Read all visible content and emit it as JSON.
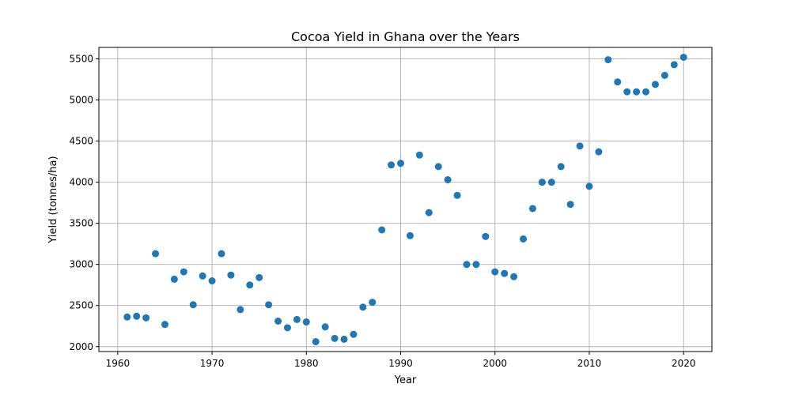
{
  "chart_data": {
    "type": "scatter",
    "title": "Cocoa Yield in Ghana over the Years",
    "xlabel": "Year",
    "ylabel": "Yield (tonnes/ha)",
    "xlim": [
      1958,
      2023
    ],
    "ylim": [
      1940,
      5640
    ],
    "x_ticks": [
      1960,
      1970,
      1980,
      1990,
      2000,
      2010,
      2020
    ],
    "y_ticks": [
      2000,
      2500,
      3000,
      3500,
      4000,
      4500,
      5000,
      5500
    ],
    "grid": true,
    "marker_color": "#1f77b4",
    "x": [
      1961,
      1962,
      1963,
      1964,
      1965,
      1966,
      1967,
      1968,
      1969,
      1970,
      1971,
      1972,
      1973,
      1974,
      1975,
      1976,
      1977,
      1978,
      1979,
      1980,
      1981,
      1982,
      1983,
      1984,
      1985,
      1986,
      1987,
      1988,
      1989,
      1990,
      1991,
      1992,
      1993,
      1994,
      1995,
      1996,
      1997,
      1998,
      1999,
      2000,
      2001,
      2002,
      2003,
      2004,
      2005,
      2006,
      2007,
      2008,
      2009,
      2010,
      2011,
      2012,
      2013,
      2014,
      2015,
      2016,
      2017,
      2018,
      2019,
      2020
    ],
    "y": [
      2360,
      2370,
      2350,
      3130,
      2270,
      2820,
      2910,
      2510,
      2860,
      2800,
      3130,
      2870,
      2450,
      2750,
      2840,
      2510,
      2310,
      2230,
      2330,
      2300,
      2060,
      2240,
      2100,
      2090,
      2150,
      2480,
      2540,
      3420,
      4210,
      4230,
      3350,
      4330,
      3630,
      4190,
      4030,
      3840,
      3000,
      3000,
      3340,
      2910,
      2890,
      2850,
      3310,
      3680,
      4000,
      4000,
      4190,
      3730,
      4440,
      3950,
      4370,
      5490,
      5220,
      5100,
      5100,
      5100,
      5190,
      5300,
      5430,
      5520
    ]
  }
}
